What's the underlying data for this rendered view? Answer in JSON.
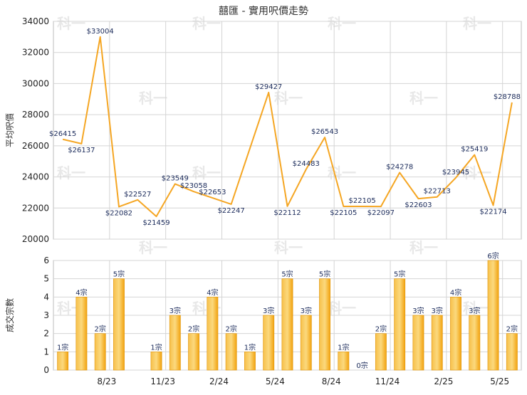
{
  "chart_data": [
    {
      "type": "line",
      "title": "囍匯 - 實用呎價走勢",
      "ylabel": "平均呎價",
      "ylim": [
        20000,
        34000
      ],
      "yticks": [
        20000,
        22000,
        24000,
        26000,
        28000,
        30000,
        32000,
        34000
      ],
      "x_index": [
        0,
        1,
        2,
        3,
        4,
        5,
        6,
        7,
        8,
        9,
        10,
        11,
        12,
        13,
        14,
        15,
        16,
        17,
        18,
        19,
        20,
        21,
        22,
        23,
        24
      ],
      "series": [
        {
          "color": "#f5a623",
          "values": [
            26415,
            26137,
            33004,
            22082,
            22527,
            21459,
            23549,
            23058,
            22653,
            22247,
            29427,
            22112,
            24483,
            26543,
            22105,
            22105,
            22097,
            24278,
            22603,
            22713,
            23945,
            25419,
            22174,
            28788
          ],
          "x": [
            0,
            1,
            2,
            3,
            4,
            5,
            6,
            7,
            8,
            9,
            11,
            12,
            13,
            14,
            15,
            16,
            17,
            18,
            19,
            20,
            21,
            22,
            23,
            24
          ],
          "labels": [
            "$26415",
            "$26137",
            "$33004",
            "$22082",
            "$22527",
            "$21459",
            "$23549",
            "$23058",
            "$22653",
            "$22247",
            "$29427",
            "$22112",
            "$24483",
            "$26543",
            "$22105",
            "$22105",
            "$22097",
            "$24278",
            "$22603",
            "$22713",
            "$23945",
            "$25419",
            "$22174",
            "$28788"
          ]
        }
      ]
    },
    {
      "type": "bar",
      "ylabel": "成交宗數",
      "ylim": [
        0,
        6
      ],
      "yticks": [
        0,
        1,
        2,
        3,
        4,
        5,
        6
      ],
      "x_tick_labels": [
        {
          "i": 2,
          "label": "8/23"
        },
        {
          "i": 5,
          "label": "11/23"
        },
        {
          "i": 8,
          "label": "2/24"
        },
        {
          "i": 11,
          "label": "5/24"
        },
        {
          "i": 14,
          "label": "8/24"
        },
        {
          "i": 17,
          "label": "11/24"
        },
        {
          "i": 20,
          "label": "2/25"
        },
        {
          "i": 23,
          "label": "5/25"
        }
      ],
      "series": [
        {
          "color": "#f5b21b",
          "values": [
            1,
            4,
            2,
            5,
            1,
            3,
            2,
            4,
            2,
            1,
            3,
            5,
            3,
            5,
            1,
            0,
            2,
            5,
            3,
            3,
            4,
            3,
            6,
            2
          ],
          "x": [
            0,
            1,
            2,
            3,
            5,
            6,
            7,
            8,
            9,
            10,
            11,
            12,
            13,
            14,
            15,
            16,
            17,
            18,
            19,
            20,
            21,
            22,
            23,
            24
          ],
          "labels": [
            "1宗",
            "4宗",
            "2宗",
            "5宗",
            "1宗",
            "3宗",
            "2宗",
            "4宗",
            "2宗",
            "1宗",
            "3宗",
            "5宗",
            "3宗",
            "5宗",
            "1宗",
            "0宗",
            "2宗",
            "5宗",
            "3宗",
            "3宗",
            "4宗",
            "3宗",
            "6宗",
            "2宗"
          ]
        }
      ]
    }
  ],
  "watermark": "科一"
}
